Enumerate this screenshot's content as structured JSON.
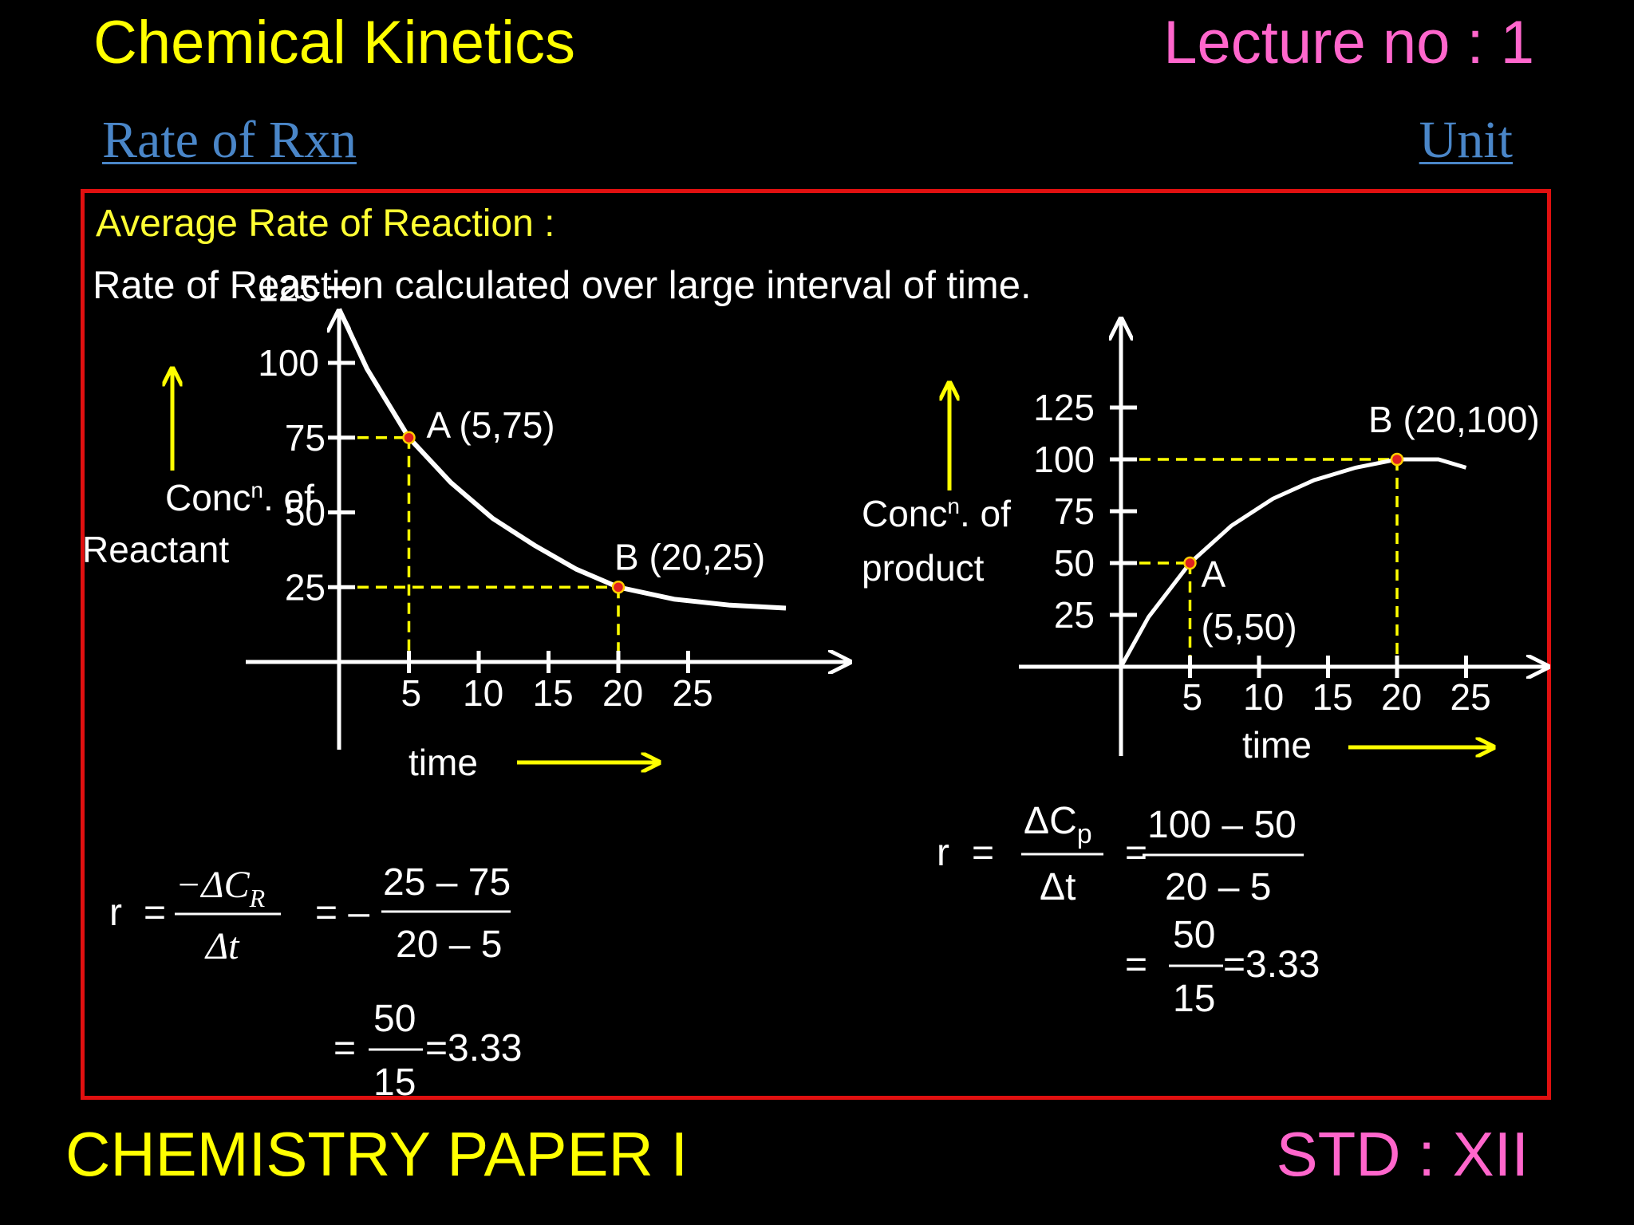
{
  "header": {
    "title": "Chemical Kinetics",
    "lecture": "Lecture no : 1",
    "link_left": "Rate of Rxn",
    "link_right": "Unit"
  },
  "content": {
    "heading": "Average Rate of Reaction :",
    "definition": "Rate of Reaction calculated over large interval of time."
  },
  "footer": {
    "left": "CHEMISTRY PAPER I",
    "right": "STD : XII"
  },
  "colors": {
    "title": "#ffff00",
    "lecture": "#ff66cc",
    "link": "#4a86c8",
    "frame": "#e01010",
    "guide": "#ffff00",
    "point": "#e02020"
  },
  "chart_data": [
    {
      "type": "line",
      "ylabel_line1": "Conc",
      "ylabel_sup": "n",
      "ylabel_line1_rest": ". of",
      "ylabel_line2": "Reactant",
      "xlabel": "time",
      "x_ticks": [
        "5",
        "10",
        "15",
        "20",
        "25"
      ],
      "y_ticks": [
        "25",
        "50",
        "75",
        "100",
        "125"
      ],
      "series": [
        {
          "x": [
            0,
            2,
            5,
            8,
            11,
            14,
            17,
            20,
            24,
            28,
            32
          ],
          "y": [
            118,
            98,
            75,
            60,
            48,
            39,
            31,
            25,
            21,
            19,
            18
          ]
        }
      ],
      "points": [
        {
          "label": "A (5,75)",
          "x": 5,
          "y": 75
        },
        {
          "label": "B (20,25)",
          "x": 20,
          "y": 25
        }
      ],
      "formula": {
        "r": "r",
        "equals": "=",
        "numerator": "−ΔC",
        "numerator_sub": "R",
        "denominator": "Δt",
        "step1_numerator": "25 – 75",
        "step1_denominator": "20 – 5",
        "step1_sign": "= –",
        "step2_numerator": "50",
        "step2_denominator": "15",
        "result": "=3.33"
      }
    },
    {
      "type": "line",
      "ylabel_line1": "Conc",
      "ylabel_sup": "n",
      "ylabel_line1_rest": ". of",
      "ylabel_line2": "product",
      "xlabel": "time",
      "x_ticks": [
        "5",
        "10",
        "15",
        "20",
        "25"
      ],
      "y_ticks": [
        "25",
        "50",
        "75",
        "100",
        "125"
      ],
      "series": [
        {
          "x": [
            0,
            2,
            5,
            8,
            11,
            14,
            17,
            20,
            23,
            25
          ],
          "y": [
            0,
            24,
            50,
            68,
            81,
            90,
            96,
            100,
            100,
            96
          ]
        }
      ],
      "points": [
        {
          "label_line1": "A",
          "label_line2": "(5,50)",
          "x": 5,
          "y": 50
        },
        {
          "label": "B (20,100)",
          "x": 20,
          "y": 100
        }
      ],
      "formula": {
        "r": "r",
        "equals": "=",
        "numerator": "ΔC",
        "numerator_sub": "p",
        "denominator": "Δt",
        "step1_numerator": "100 – 50",
        "step1_denominator": "20 – 5",
        "step1_sign": "=",
        "step2_numerator": "50",
        "step2_denominator": "15",
        "result": "=3.33"
      }
    }
  ]
}
